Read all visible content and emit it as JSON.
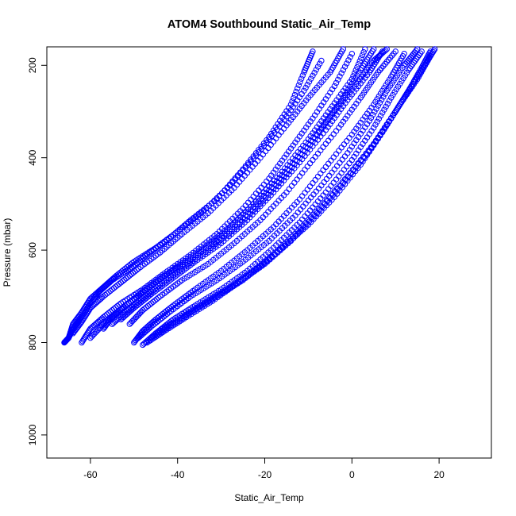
{
  "chart_data": {
    "type": "scatter",
    "title": "ATOM4 Southbound Static_Air_Temp",
    "xlabel": "Static_Air_Temp",
    "ylabel": "Pressure (mbar)",
    "xlim": [
      -70,
      32
    ],
    "ylim": [
      1050,
      160
    ],
    "y_reversed": true,
    "x_ticks": [
      -60,
      -40,
      -20,
      0,
      20
    ],
    "y_ticks": [
      200,
      400,
      600,
      800,
      1000
    ],
    "marker": "open-circle",
    "color": "#0000ff",
    "grid": false,
    "series": [
      {
        "x": [
          -66,
          -65,
          -64,
          -62,
          -60,
          -58,
          -55,
          -51,
          -47,
          -42,
          -37,
          -31,
          -25,
          -19,
          -14,
          -11,
          -9
        ],
        "y": [
          800,
          790,
          770,
          745,
          715,
          690,
          665,
          640,
          610,
          575,
          535,
          490,
          425,
          355,
          285,
          215,
          170
        ]
      },
      {
        "x": [
          -65,
          -64,
          -62,
          -60,
          -57,
          -54,
          -50,
          -45,
          -40,
          -34,
          -28,
          -22,
          -16,
          -11,
          -7
        ],
        "y": [
          790,
          760,
          735,
          705,
          680,
          655,
          625,
          595,
          560,
          515,
          460,
          395,
          325,
          255,
          190
        ]
      },
      {
        "x": [
          -64,
          -62,
          -60,
          -57,
          -53,
          -49,
          -44,
          -39,
          -33,
          -27,
          -21,
          -15,
          -10,
          -5,
          -2
        ],
        "y": [
          780,
          755,
          725,
          700,
          670,
          640,
          605,
          565,
          520,
          465,
          400,
          330,
          270,
          215,
          165
        ]
      },
      {
        "x": [
          -62,
          -60,
          -57,
          -53,
          -48,
          -43,
          -37,
          -31,
          -25,
          -19,
          -14,
          -9,
          -4,
          0
        ],
        "y": [
          800,
          770,
          745,
          715,
          685,
          650,
          610,
          565,
          510,
          445,
          380,
          315,
          245,
          175
        ]
      },
      {
        "x": [
          -60,
          -57,
          -54,
          -50,
          -45,
          -40,
          -34,
          -28,
          -22,
          -16,
          -10,
          -5,
          0,
          3
        ],
        "y": [
          790,
          760,
          735,
          705,
          670,
          635,
          595,
          550,
          495,
          430,
          360,
          295,
          230,
          165
        ]
      },
      {
        "x": [
          -57,
          -55,
          -52,
          -48,
          -43,
          -37,
          -31,
          -25,
          -19,
          -13,
          -7,
          -2,
          2,
          5
        ],
        "y": [
          770,
          745,
          720,
          690,
          655,
          620,
          580,
          530,
          470,
          405,
          335,
          270,
          210,
          165
        ]
      },
      {
        "x": [
          -55,
          -52,
          -48,
          -44,
          -39,
          -33,
          -27,
          -21,
          -15,
          -9,
          -4,
          1,
          5,
          8
        ],
        "y": [
          760,
          735,
          705,
          675,
          640,
          600,
          555,
          500,
          435,
          365,
          300,
          240,
          190,
          165
        ]
      },
      {
        "x": [
          -53,
          -50,
          -46,
          -41,
          -36,
          -30,
          -24,
          -18,
          -12,
          -6,
          -1,
          4,
          7
        ],
        "y": [
          750,
          725,
          695,
          660,
          625,
          585,
          535,
          475,
          410,
          340,
          275,
          215,
          170
        ]
      },
      {
        "x": [
          -51,
          -48,
          -44,
          -39,
          -33,
          -27,
          -21,
          -15,
          -9,
          -3,
          2,
          6,
          10
        ],
        "y": [
          760,
          730,
          700,
          665,
          630,
          585,
          535,
          475,
          405,
          335,
          270,
          215,
          170
        ]
      },
      {
        "x": [
          -50,
          -48,
          -45,
          -41,
          -36,
          -30,
          -24,
          -18,
          -12,
          -6,
          0,
          5,
          9,
          12
        ],
        "y": [
          800,
          775,
          750,
          720,
          685,
          645,
          600,
          550,
          490,
          420,
          350,
          285,
          225,
          175
        ]
      },
      {
        "x": [
          -49,
          -46,
          -42,
          -37,
          -31,
          -25,
          -19,
          -13,
          -7,
          -1,
          4,
          8,
          12,
          15
        ],
        "y": [
          790,
          765,
          735,
          700,
          665,
          625,
          580,
          525,
          460,
          390,
          320,
          255,
          200,
          165
        ]
      },
      {
        "x": [
          -48,
          -45,
          -41,
          -36,
          -30,
          -24,
          -18,
          -12,
          -6,
          0,
          5,
          9,
          13,
          16
        ],
        "y": [
          805,
          780,
          750,
          720,
          685,
          645,
          595,
          540,
          475,
          405,
          335,
          270,
          210,
          170
        ]
      },
      {
        "x": [
          -47,
          -43,
          -38,
          -32,
          -26,
          -20,
          -14,
          -8,
          -2,
          4,
          9,
          13,
          16,
          18
        ],
        "y": [
          800,
          775,
          745,
          710,
          670,
          630,
          580,
          520,
          455,
          385,
          315,
          255,
          205,
          170
        ]
      },
      {
        "x": [
          -46,
          -42,
          -37,
          -31,
          -25,
          -19,
          -13,
          -7,
          -1,
          5,
          10,
          14,
          17,
          19
        ],
        "y": [
          790,
          765,
          735,
          700,
          665,
          620,
          565,
          505,
          440,
          370,
          300,
          240,
          195,
          165
        ]
      },
      {
        "x": [
          -45,
          -40,
          -34,
          -28,
          -22,
          -16,
          -10,
          -4,
          2,
          7,
          11,
          15,
          18
        ],
        "y": [
          780,
          750,
          715,
          680,
          640,
          595,
          545,
          485,
          415,
          345,
          285,
          230,
          180
        ]
      }
    ]
  }
}
